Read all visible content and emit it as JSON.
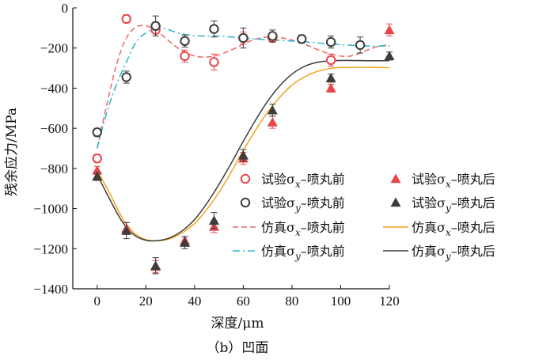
{
  "chart_data": {
    "type": "scatter",
    "title": "",
    "caption": "（b）凹面",
    "xlabel": "深度/μm",
    "ylabel": "残余应力/MPa",
    "xlim": [
      -10,
      120
    ],
    "ylim": [
      -1400,
      0
    ],
    "xticks": [
      0,
      20,
      40,
      60,
      80,
      100,
      120
    ],
    "yticks": [
      0,
      -200,
      -400,
      -600,
      -800,
      -1000,
      -1200,
      -1400
    ],
    "grid": false,
    "legend_position": "lower-right",
    "colors": {
      "red": "#e8474a",
      "dark": "#3c3c3c",
      "red_dash": "#ee6666",
      "cyan": "#2ab5cc",
      "orange": "#f2a41f",
      "olive": "#707a3a"
    },
    "series": [
      {
        "name": "试验σx–喷丸前",
        "kind": "scatter",
        "marker": "circle-open",
        "color": "#e8474a",
        "x": [
          0,
          12,
          24,
          36,
          48,
          60,
          72,
          96
        ],
        "y": [
          -750,
          -55,
          -110,
          -240,
          -270,
          -150,
          -150,
          -260
        ],
        "err": [
          20,
          20,
          30,
          30,
          40,
          30,
          20,
          30
        ]
      },
      {
        "name": "试验σx–喷丸后",
        "kind": "scatter",
        "marker": "triangle-filled",
        "color": "#e8474a",
        "x": [
          0,
          12,
          24,
          36,
          48,
          60,
          72,
          96,
          120
        ],
        "y": [
          -810,
          -1100,
          -1290,
          -1160,
          -1090,
          -750,
          -570,
          -400,
          -110
        ],
        "err": [
          20,
          30,
          30,
          20,
          30,
          30,
          30,
          20,
          30
        ]
      },
      {
        "name": "试验σy–喷丸前",
        "kind": "scatter",
        "marker": "circle-open",
        "color": "#3c3c3c",
        "x": [
          0,
          12,
          24,
          36,
          48,
          60,
          72,
          84,
          96,
          108
        ],
        "y": [
          -620,
          -345,
          -90,
          -165,
          -105,
          -150,
          -140,
          -155,
          -170,
          -185
        ],
        "err": [
          20,
          30,
          50,
          30,
          40,
          50,
          30,
          20,
          30,
          40
        ]
      },
      {
        "name": "试验σy–喷丸后",
        "kind": "scatter",
        "marker": "triangle-filled",
        "color": "#3c3c3c",
        "x": [
          0,
          12,
          24,
          36,
          48,
          60,
          72,
          96,
          120
        ],
        "y": [
          -840,
          -1110,
          -1285,
          -1170,
          -1060,
          -735,
          -510,
          -350,
          -240
        ],
        "err": [
          20,
          40,
          40,
          30,
          40,
          30,
          30,
          20,
          20
        ]
      },
      {
        "name": "仿真σx–喷丸前",
        "kind": "line",
        "dash": "dash",
        "color": "#ee6666",
        "x": [
          0,
          4,
          8,
          12,
          16,
          20,
          24,
          28,
          32,
          36,
          40,
          44,
          48,
          52,
          56,
          60,
          64,
          68,
          72,
          76,
          80,
          84,
          88,
          92,
          96,
          100,
          104,
          108,
          112,
          116,
          120
        ],
        "y": [
          -700,
          -480,
          -280,
          -150,
          -95,
          -90,
          -110,
          -150,
          -190,
          -220,
          -240,
          -245,
          -240,
          -225,
          -205,
          -180,
          -160,
          -148,
          -145,
          -150,
          -160,
          -175,
          -195,
          -215,
          -230,
          -240,
          -240,
          -225,
          -205,
          -190,
          -185
        ]
      },
      {
        "name": "仿真σx–喷丸后",
        "kind": "line",
        "dash": "solid",
        "color": "#f2a41f",
        "x": [
          0,
          5,
          10,
          15,
          20,
          25,
          30,
          35,
          40,
          45,
          50,
          55,
          60,
          65,
          70,
          75,
          80,
          85,
          90,
          95,
          100,
          105,
          110,
          115,
          120
        ],
        "y": [
          -810,
          -920,
          -1040,
          -1120,
          -1155,
          -1160,
          -1150,
          -1120,
          -1075,
          -1005,
          -920,
          -820,
          -710,
          -610,
          -520,
          -445,
          -385,
          -345,
          -318,
          -303,
          -297,
          -296,
          -296,
          -297,
          -298
        ]
      },
      {
        "name": "仿真σy–喷丸前",
        "kind": "line",
        "dash": "dashdot",
        "color": "#2ab5cc",
        "x": [
          0,
          4,
          8,
          12,
          16,
          20,
          24,
          28,
          32,
          36,
          40,
          44,
          48,
          52,
          56,
          60,
          64,
          68,
          72,
          76,
          80,
          84,
          88,
          92,
          96,
          100,
          104,
          108,
          112,
          116,
          120
        ],
        "y": [
          -700,
          -520,
          -380,
          -270,
          -170,
          -125,
          -105,
          -105,
          -120,
          -132,
          -138,
          -140,
          -140,
          -142,
          -146,
          -150,
          -154,
          -157,
          -160,
          -162,
          -165,
          -168,
          -172,
          -176,
          -180,
          -183,
          -186,
          -188,
          -190,
          -190,
          -190
        ]
      },
      {
        "name": "仿真σy–喷丸后",
        "kind": "line",
        "dash": "solid",
        "color": "#3c3c3c",
        "x": [
          0,
          5,
          10,
          15,
          20,
          25,
          30,
          35,
          40,
          45,
          50,
          55,
          60,
          65,
          70,
          75,
          80,
          85,
          90,
          95,
          100,
          105,
          110,
          115,
          120
        ],
        "y": [
          -830,
          -950,
          -1060,
          -1130,
          -1158,
          -1160,
          -1145,
          -1110,
          -1055,
          -975,
          -880,
          -775,
          -665,
          -560,
          -465,
          -388,
          -330,
          -292,
          -272,
          -264,
          -262,
          -262,
          -263,
          -263,
          -263
        ]
      }
    ]
  }
}
